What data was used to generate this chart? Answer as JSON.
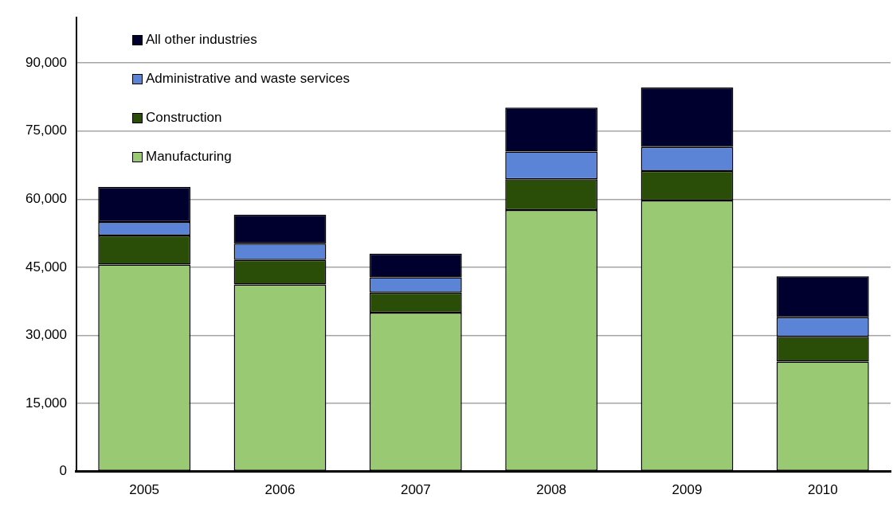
{
  "chart_data": {
    "type": "bar",
    "stacked": true,
    "categories": [
      "2005",
      "2006",
      "2007",
      "2008",
      "2009",
      "2010"
    ],
    "series": [
      {
        "name": "Manufacturing",
        "color": "#99c973",
        "values": [
          45600,
          41200,
          35000,
          57600,
          59700,
          24200
        ]
      },
      {
        "name": "Construction",
        "color": "#2a4d08",
        "values": [
          6400,
          5400,
          4400,
          6800,
          6500,
          5500
        ]
      },
      {
        "name": "Administrative and waste services",
        "color": "#5b84d6",
        "values": [
          3000,
          3600,
          3400,
          6100,
          5300,
          4300
        ]
      },
      {
        "name": "All other industries",
        "color": "#00002e",
        "values": [
          7700,
          6400,
          5200,
          9700,
          13100,
          9000
        ]
      }
    ],
    "ylim": [
      0,
      100000
    ],
    "yticks": [
      0,
      {
        "value": 15000,
        "label": "15,000"
      },
      {
        "value": 30000,
        "label": "30,000"
      },
      {
        "value": 45000,
        "label": "45,000"
      },
      {
        "value": 60000,
        "label": "60,000"
      },
      {
        "value": 75000,
        "label": "75,000"
      },
      {
        "value": 90000,
        "label": "90,000"
      }
    ],
    "grid": "y",
    "legend": "top left"
  }
}
